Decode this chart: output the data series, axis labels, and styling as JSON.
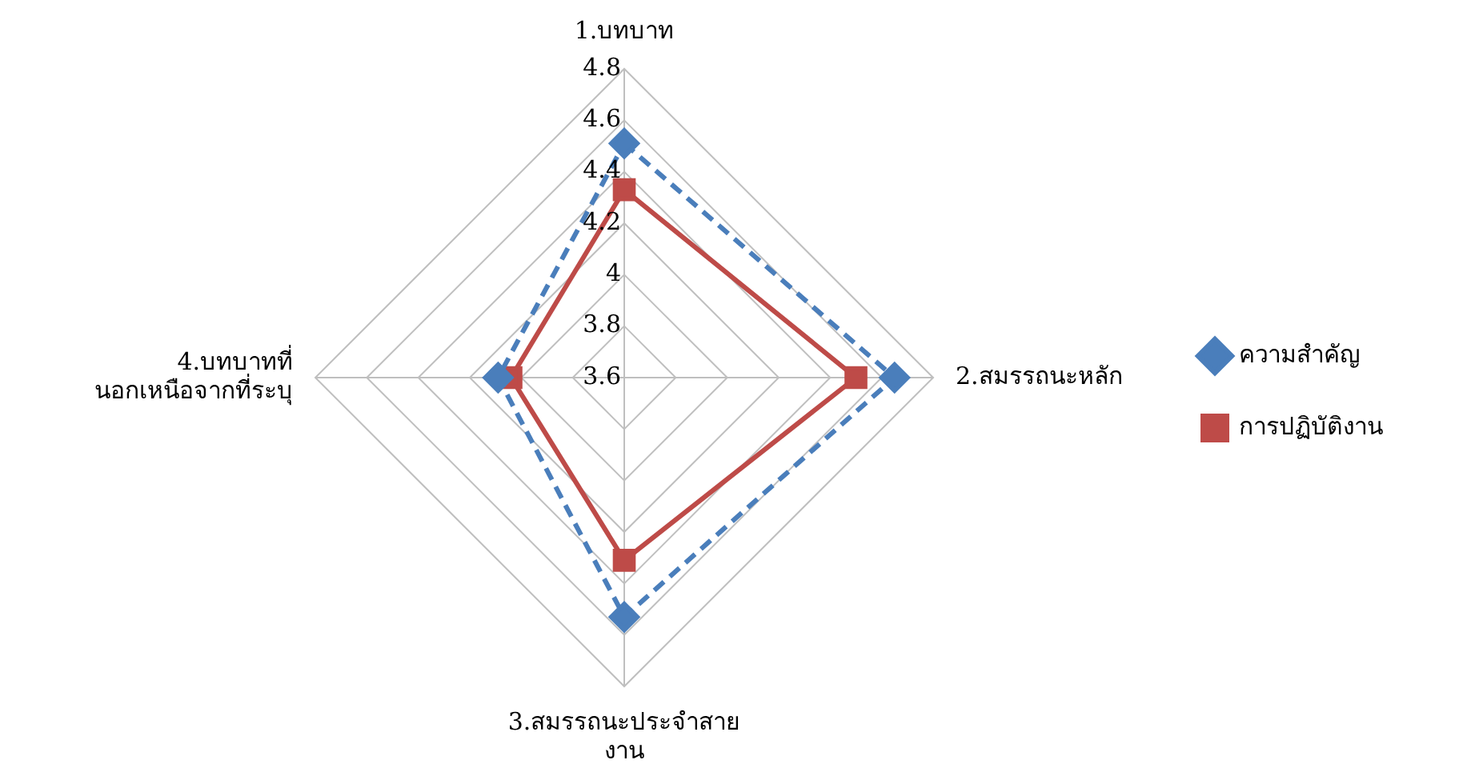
{
  "chart_data": {
    "type": "radar",
    "categories": [
      "1.บทบาท",
      "2.สมรรถนะหลัก",
      "3.สมรรถนะประจำสาย\nงาน",
      "4.บทบาทที่\nนอกเหนือจากที่ระบุ"
    ],
    "series": [
      {
        "name": "ความสำคัญ",
        "color": "#4a7ebb",
        "values": [
          4.51,
          4.65,
          4.53,
          4.09
        ],
        "marker": "diamond",
        "line_style": "dashed"
      },
      {
        "name": "การปฏิบัติงาน",
        "color": "#be4b48",
        "values": [
          4.33,
          4.5,
          4.31,
          4.04
        ],
        "marker": "square",
        "line_style": "solid"
      }
    ],
    "ylim": [
      3.6,
      4.8
    ],
    "yticks": [
      3.6,
      3.8,
      4,
      4.2,
      4.4,
      4.6,
      4.8
    ],
    "grid": true,
    "legend": "right"
  }
}
